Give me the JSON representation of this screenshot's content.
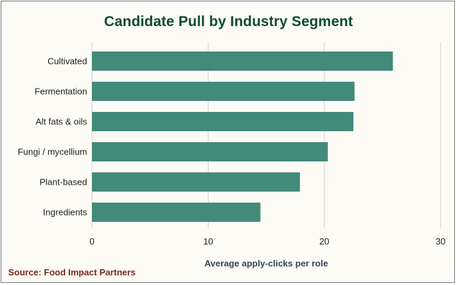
{
  "source": "Source: Food Impact Partners",
  "colors": {
    "bar": "#428a7a",
    "title": "#0f4a3a",
    "axis_label": "#33465c",
    "grid": "#cfcfcf",
    "source": "#7a2a22",
    "background": "#fdfbf5"
  },
  "chart_data": {
    "type": "bar",
    "orientation": "horizontal",
    "title": "Candidate Pull by Industry Segment",
    "xlabel": "Average apply-clicks per role",
    "ylabel": "",
    "categories": [
      "Cultivated",
      "Fermentation",
      "Alt fats & oils",
      "Fungi / mycellium",
      "Plant-based",
      "Ingredients"
    ],
    "values": [
      25.9,
      22.6,
      22.5,
      20.3,
      17.9,
      14.5
    ],
    "xlim": [
      0,
      30
    ],
    "xticks": [
      0,
      10,
      20,
      30
    ],
    "xtick_labels": [
      "0",
      "10",
      "20",
      "30"
    ],
    "grid": "vertical",
    "legend": "none"
  }
}
